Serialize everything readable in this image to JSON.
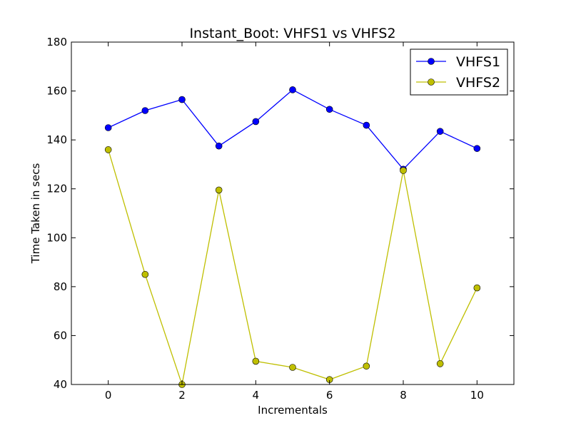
{
  "chart_data": {
    "type": "line",
    "title": "Instant_Boot: VHFS1 vs VHFS2",
    "xlabel": "Incrementals",
    "ylabel": "Time Taken in secs",
    "xlim": [
      -1,
      11
    ],
    "ylim": [
      40,
      180
    ],
    "xticks": [
      0,
      2,
      4,
      6,
      8,
      10
    ],
    "yticks": [
      40,
      60,
      80,
      100,
      120,
      140,
      160,
      180
    ],
    "grid": false,
    "legend_position": "top-right",
    "x": [
      0,
      1,
      2,
      3,
      4,
      5,
      6,
      7,
      8,
      9,
      10
    ],
    "series": [
      {
        "name": "VHFS1",
        "color": "#0000ff",
        "values": [
          145,
          152,
          156.5,
          137.5,
          147.5,
          160.5,
          152.5,
          146,
          128,
          143.5,
          136.5
        ]
      },
      {
        "name": "VHFS2",
        "color": "#bfbf00",
        "values": [
          136,
          85,
          40,
          119.5,
          49.5,
          47,
          42,
          47.5,
          127.5,
          48.5,
          79.5
        ]
      }
    ]
  }
}
